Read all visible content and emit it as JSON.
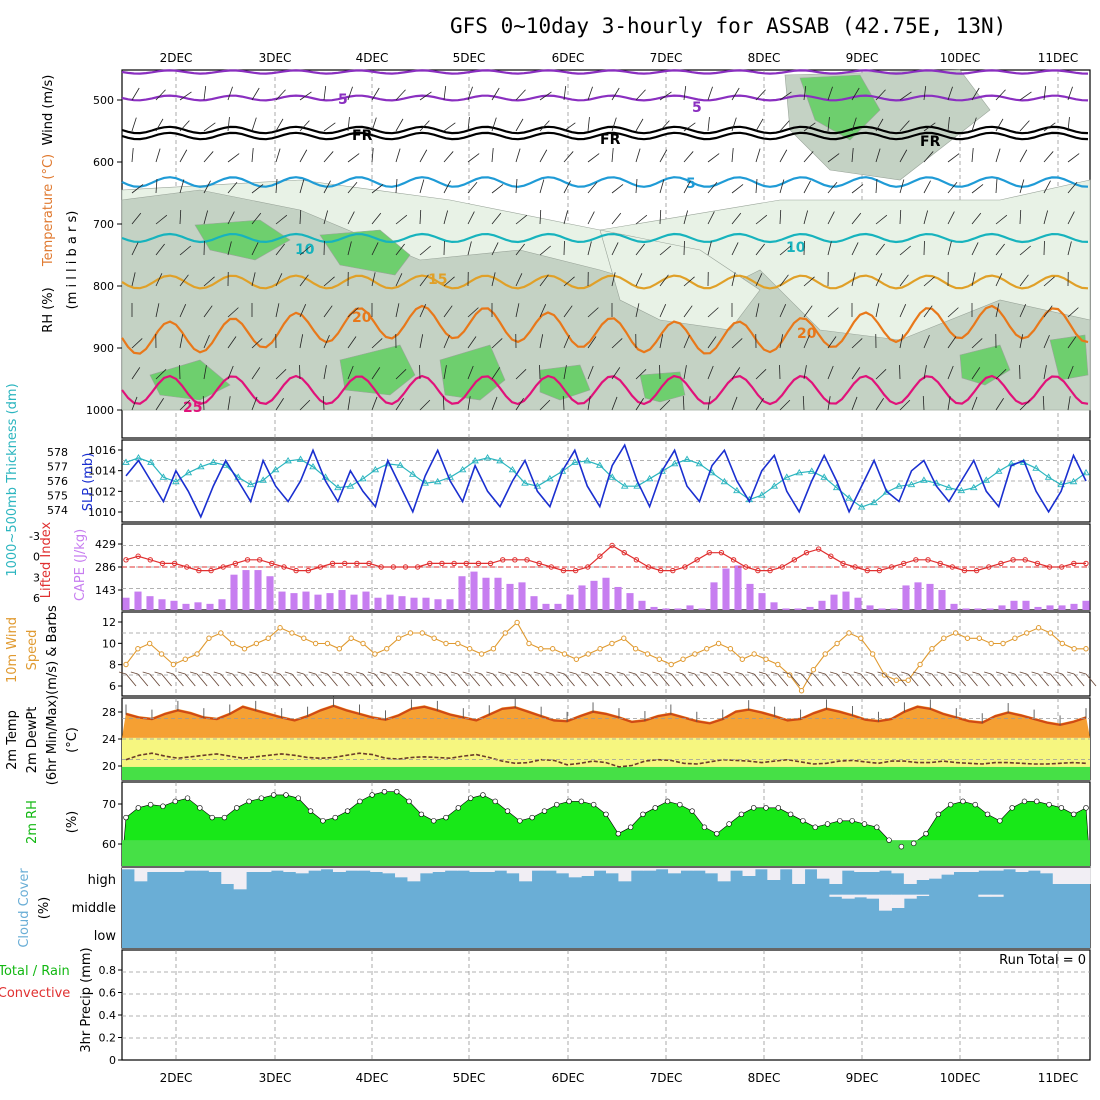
{
  "title": "GFS 0~10day 3-hourly for ASSAB (42.75E, 13N)",
  "dates": [
    "2DEC",
    "3DEC",
    "4DEC",
    "5DEC",
    "6DEC",
    "7DEC",
    "8DEC",
    "9DEC",
    "10DEC",
    "11DEC"
  ],
  "colors": {
    "rh_light": "#e8f2e6",
    "rh_mid": "#c4d2c4",
    "rh_green": "#6ecf6e",
    "rh_bright": "#1fd51f",
    "t5": "#8a2fc0",
    "fr": "#000000",
    "t5b": "#1f9bd6",
    "t10": "#17b3bd",
    "t15": "#e0a028",
    "t20": "#e8781a",
    "t25": "#e0127a",
    "slp": "#1a2fd0",
    "thick": "#2bb5bf",
    "cape": "#c77ef0",
    "li": "#e03030",
    "wind10": "#e09a30",
    "barb": "#6a4a3a",
    "temp_fill": "#f5a033",
    "temp_top": "#d04a14",
    "dew_band": "#f6f680",
    "dew_green": "#46e046",
    "rh2m_dark": "#13b813",
    "rh2m": "#18e818",
    "rh2m_low": "#46e046",
    "cloud": "#6aaed6",
    "cloud_gap": "#f1eef4"
  },
  "panels": {
    "upper": {
      "y_label_rh": "RH (%)",
      "y_label_temp": "Temperature (°C)",
      "y_label_wind": "Wind (m/s)",
      "y_label_mb": "(m i l l i b a r s)",
      "levels": [
        "500",
        "600",
        "700",
        "800",
        "900",
        "1000"
      ],
      "contour_labels": [
        "5",
        "5",
        "FR",
        "FR",
        "FR",
        "5",
        "10",
        "10",
        "15",
        "20",
        "20",
        "25"
      ]
    },
    "slp": {
      "y_label_thick": "1000~500mb Thickness (dm)",
      "y_label_slp": "SLP (mb)",
      "thick_ticks": [
        "578",
        "577",
        "576",
        "575",
        "574"
      ],
      "slp_ticks": [
        "1016",
        "1014",
        "1012",
        "1010"
      ]
    },
    "cape": {
      "y_label_li": "Lifted Index",
      "y_label_cape": "CAPE (J/kg)",
      "li_ticks": [
        "-3",
        "0",
        "3",
        "6"
      ],
      "cape_ticks": [
        "429",
        "286",
        "143"
      ]
    },
    "wind": {
      "y_label_a": "10m Wind",
      "y_label_b": "Speed",
      "y_label_c": "(m/s) & Barbs",
      "ticks": [
        "12",
        "10",
        "8",
        "6"
      ]
    },
    "temp": {
      "y_label_a": "2m Temp",
      "y_label_b": "2m DewPt",
      "y_label_c": "(6hr Min/Max)",
      "y_label_d": "(°C)",
      "ticks": [
        "28",
        "24",
        "20"
      ]
    },
    "rh": {
      "y_label": "2m RH",
      "y_unit": "(%)",
      "ticks": [
        "70",
        "60"
      ]
    },
    "cloud": {
      "y_label": "Cloud Cover",
      "y_unit": "(%)",
      "layers": [
        "high",
        "middle",
        "low"
      ]
    },
    "precip": {
      "y_label_a": "Total / Rain",
      "y_label_b": "Convective",
      "y_label_c": "3hr Precip (mm)",
      "ticks": [
        "0.8",
        "0.6",
        "0.4",
        "0.2",
        "0"
      ],
      "run_total": "Run Total = 0"
    }
  },
  "chart_data": [
    {
      "type": "line",
      "title": "1000~500mb Thickness (dm) / SLP (mb)",
      "series": [
        {
          "name": "SLP (mb)",
          "values": [
            1013.5,
            1015,
            1013,
            1011,
            1014,
            1012,
            1009.5,
            1012.5,
            1015,
            1013,
            1011,
            1015,
            1012.5,
            1011,
            1013,
            1016,
            1013,
            1011,
            1014,
            1012,
            1010.5,
            1015,
            1012.5,
            1010,
            1013.5,
            1016,
            1013,
            1011,
            1014.5,
            1012,
            1010.5,
            1013,
            1015,
            1012,
            1010.5,
            1014,
            1016,
            1012.5,
            1010.5,
            1014.5,
            1016.5,
            1013,
            1010.5,
            1014,
            1016,
            1012.5,
            1011,
            1014.5,
            1016,
            1013,
            1011,
            1014,
            1015.5,
            1012,
            1010,
            1013,
            1015.5,
            1013,
            1010,
            1012.5,
            1015,
            1012,
            1011,
            1014,
            1015,
            1012.5,
            1011,
            1013,
            1015,
            1012,
            1010.5,
            1014.5,
            1015,
            1012,
            1010,
            1012,
            1015.5,
            1013
          ]
        },
        {
          "name": "Thickness (dm)",
          "values": [
            577.5,
            577.8,
            577.5,
            576.5,
            576.2,
            576.8,
            577.2,
            577.5,
            577.3,
            576.5,
            576,
            576.3,
            577,
            577.6,
            577.7,
            577.2,
            576.5,
            575.8,
            575.9,
            576.4,
            577,
            577.4,
            577.3,
            576.7,
            576.1,
            576.2,
            576.5,
            577,
            577.6,
            577.8,
            577.6,
            577,
            576.1,
            575.9,
            576.4,
            576.9,
            577.5,
            577.6,
            577.3,
            576.5,
            575.9,
            575.9,
            576.4,
            576.9,
            577.4,
            577.7,
            577.4,
            576.8,
            576.2,
            575.6,
            575,
            575.3,
            575.9,
            576.5,
            576.8,
            576.9,
            576.5,
            575.8,
            575.1,
            574.5,
            574.8,
            575.5,
            575.9,
            576,
            576.3,
            576.1,
            575.8,
            575.6,
            575.8,
            576.3,
            576.9,
            577.4,
            577.5,
            577.1,
            576.5,
            576,
            576.2,
            576.8
          ]
        }
      ],
      "ylim_slp": [
        1009,
        1017
      ],
      "ylim_thick": [
        573.5,
        579
      ]
    },
    {
      "type": "bar",
      "title": "Lifted Index / CAPE (J/kg)",
      "series": [
        {
          "name": "CAPE (J/kg)",
          "values": [
            80,
            120,
            90,
            70,
            60,
            40,
            50,
            40,
            70,
            230,
            260,
            260,
            220,
            120,
            110,
            120,
            100,
            110,
            130,
            100,
            120,
            80,
            100,
            90,
            80,
            80,
            70,
            70,
            220,
            250,
            210,
            210,
            170,
            180,
            90,
            40,
            40,
            100,
            160,
            190,
            210,
            150,
            110,
            60,
            20,
            10,
            10,
            30,
            10,
            180,
            270,
            290,
            170,
            110,
            50,
            10,
            10,
            20,
            60,
            100,
            120,
            80,
            30,
            10,
            10,
            160,
            180,
            170,
            130,
            40,
            10,
            10,
            10,
            30,
            60,
            60,
            20,
            30,
            30,
            40,
            60
          ]
        },
        {
          "name": "Lifted Index",
          "values": [
            -1,
            -1.5,
            -1,
            -0.5,
            -0.5,
            0,
            0.5,
            0.5,
            0,
            -0.5,
            -1,
            -1,
            -0.5,
            0,
            0.5,
            0.5,
            0,
            -0.5,
            -0.5,
            -0.5,
            -0.5,
            0,
            0,
            0,
            0,
            -0.5,
            -0.5,
            -0.5,
            -0.5,
            -0.5,
            -0.5,
            -1,
            -1,
            -1,
            -0.5,
            0,
            0.5,
            0.5,
            0,
            -1.5,
            -3,
            -2,
            -1,
            0,
            0.5,
            0.5,
            0,
            -1,
            -2,
            -2,
            -1,
            0,
            0.5,
            0.5,
            0,
            -1,
            -2,
            -2.5,
            -1.5,
            -0.5,
            0,
            0.5,
            0.5,
            0,
            -0.5,
            -1,
            -1,
            -0.5,
            0,
            0.5,
            0.5,
            0,
            -0.5,
            -1,
            -1,
            -0.5,
            0,
            0,
            -0.5,
            -0.5
          ]
        }
      ],
      "ylim_cape": [
        0,
        560
      ],
      "ylim_li": [
        6,
        -6
      ]
    },
    {
      "type": "line",
      "title": "10m Wind Speed (m/s) & Barbs",
      "series": [
        {
          "name": "Wind speed (m/s)",
          "values": [
            8,
            9.5,
            10,
            9,
            8,
            8.5,
            9,
            10.5,
            11,
            10,
            9.5,
            10,
            10.5,
            11.5,
            11,
            10.5,
            10,
            10,
            9.5,
            10.5,
            10,
            9,
            9.5,
            10.5,
            11,
            11,
            10.5,
            10,
            10,
            9.5,
            9,
            9.5,
            11,
            12,
            10,
            9.5,
            9.5,
            9,
            8.5,
            9,
            9.5,
            10,
            10.5,
            9.5,
            9,
            8.5,
            8,
            8.5,
            9,
            9.5,
            10,
            9.5,
            8.5,
            9,
            8.5,
            8,
            7,
            5.5,
            7.5,
            9,
            10,
            11,
            10.5,
            9,
            7,
            6.5,
            6.5,
            8,
            9.5,
            10.5,
            11,
            10.5,
            10.5,
            10,
            10,
            10.5,
            11,
            11.5,
            11,
            10,
            9.5,
            9.5
          ]
        }
      ],
      "ylim": [
        5,
        13
      ]
    },
    {
      "type": "area",
      "title": "2m Temp / 2m DewPt (6hr Min/Max) (°C)",
      "series": [
        {
          "name": "2m Temp (°C)",
          "values": [
            27.5,
            27,
            26.8,
            27.5,
            28,
            27.6,
            27,
            26.8,
            27.5,
            28.5,
            28,
            27.5,
            27,
            26.6,
            27.2,
            28,
            28.6,
            28,
            27.5,
            27,
            26.7,
            27.3,
            28.2,
            28.5,
            28,
            27.4,
            27,
            26.6,
            27.4,
            28.2,
            28.4,
            27.8,
            27.2,
            26.6,
            26.5,
            27.2,
            27.8,
            27.5,
            27,
            26.4,
            26.6,
            27.2,
            27.5,
            27,
            26.5,
            26.2,
            26.8,
            27.8,
            28.1,
            27.7,
            27.2,
            26.6,
            26.8,
            27.6,
            28.2,
            27.8,
            27.3,
            26.7,
            26.5,
            26.8,
            27.8,
            28.5,
            28.2,
            27.5,
            27,
            26.5,
            26.3,
            27.2,
            27.7,
            27.3,
            26.8,
            26.3,
            26,
            26.4,
            27
          ]
        },
        {
          "name": "2m DewPt (°C)",
          "values": [
            21,
            21.6,
            21.9,
            21.5,
            21.2,
            21.4,
            21.6,
            21.8,
            21.5,
            21.2,
            21.4,
            21.6,
            21.8,
            21.6,
            21.3,
            21.2,
            21.3,
            21.6,
            21.9,
            21.7,
            21.2,
            21.1,
            21.3,
            21.4,
            21.3,
            21.2,
            21.5,
            21.7,
            21.3,
            20.8,
            20.5,
            20.6,
            21,
            20.9,
            20.3,
            20.5,
            20.8,
            20.6,
            20,
            20.2,
            20.8,
            21,
            20.9,
            20.5,
            20.4,
            20.7,
            21,
            20.9,
            20.8,
            20.6,
            20.8,
            21,
            20.7,
            20.4,
            20.5,
            20.8,
            20.9,
            20.7,
            20.5,
            20.8,
            20.8,
            20.6,
            20.6,
            20.8,
            20.6,
            20.5,
            20.4,
            20.6,
            20.6,
            20.5,
            20.4,
            20.4,
            20.5,
            20.6,
            20.5
          ]
        }
      ],
      "ylim": [
        18.2,
        29.5
      ]
    },
    {
      "type": "area",
      "title": "2m RH (%)",
      "series": [
        {
          "name": "2m RH (%)",
          "values": [
            67,
            70,
            71,
            70.5,
            72,
            73,
            70,
            67,
            67,
            70,
            72,
            73,
            74,
            74,
            73,
            69,
            66,
            67,
            69,
            72,
            74,
            75,
            75,
            72,
            68,
            66,
            67,
            70,
            73,
            74,
            72,
            69,
            66,
            67,
            69,
            71,
            72,
            72,
            71,
            68,
            62,
            64,
            68,
            70,
            72,
            71,
            69,
            64,
            62,
            65,
            68,
            70,
            70,
            70,
            68,
            66,
            64,
            65,
            66,
            66,
            65,
            64,
            60,
            58,
            59,
            62,
            68,
            71,
            72,
            71,
            68,
            66,
            70,
            72,
            72,
            71,
            70,
            68,
            70
          ]
        }
      ],
      "ylim": [
        52,
        78
      ]
    },
    {
      "type": "bar",
      "title": "Cloud Cover (%)",
      "layers": [
        "high",
        "middle",
        "low"
      ],
      "series": [
        {
          "name": "high",
          "values": [
            95,
            50,
            85,
            85,
            85,
            90,
            90,
            85,
            40,
            20,
            85,
            85,
            90,
            85,
            80,
            90,
            95,
            85,
            90,
            90,
            85,
            80,
            65,
            50,
            80,
            85,
            90,
            90,
            85,
            85,
            90,
            80,
            50,
            90,
            90,
            80,
            65,
            70,
            90,
            80,
            50,
            90,
            90,
            95,
            80,
            90,
            90,
            80,
            50,
            90,
            70,
            95,
            55,
            95,
            40,
            95,
            60,
            40,
            90,
            85,
            85,
            90,
            80,
            40,
            55,
            60,
            75,
            85,
            85,
            90,
            90,
            95,
            85,
            90,
            80,
            40,
            40,
            40
          ]
        },
        {
          "name": "middle",
          "values": [
            100,
            100,
            100,
            100,
            100,
            100,
            100,
            100,
            100,
            100,
            100,
            100,
            100,
            100,
            100,
            100,
            100,
            100,
            100,
            100,
            100,
            100,
            100,
            100,
            100,
            100,
            100,
            100,
            100,
            100,
            100,
            100,
            100,
            100,
            100,
            100,
            100,
            100,
            100,
            100,
            100,
            100,
            100,
            100,
            100,
            100,
            100,
            100,
            100,
            100,
            100,
            100,
            100,
            100,
            100,
            100,
            100,
            92,
            85,
            90,
            85,
            40,
            50,
            85,
            95,
            100,
            100,
            100,
            100,
            92,
            92,
            100,
            100,
            100,
            100,
            100,
            100,
            100
          ]
        },
        {
          "name": "low",
          "values": [
            100,
            100,
            100,
            100,
            100,
            100,
            100,
            100,
            100,
            100,
            100,
            100,
            100,
            100,
            100,
            100,
            100,
            100,
            100,
            100,
            100,
            100,
            100,
            100,
            100,
            100,
            100,
            100,
            100,
            100,
            100,
            100,
            100,
            100,
            100,
            100,
            100,
            100,
            100,
            100,
            100,
            100,
            100,
            100,
            100,
            100,
            100,
            100,
            100,
            100,
            100,
            100,
            100,
            100,
            100,
            100,
            100,
            100,
            100,
            100,
            100,
            100,
            100,
            100,
            100,
            100,
            100,
            100,
            100,
            100,
            100,
            100,
            100,
            100,
            100,
            100,
            100,
            100
          ]
        }
      ],
      "ylim": [
        0,
        100
      ]
    },
    {
      "type": "bar",
      "title": "3hr Precip (mm)",
      "series": [
        {
          "name": "Total / Rain",
          "values": []
        },
        {
          "name": "Convective",
          "values": []
        }
      ],
      "ylim": [
        0,
        0.9
      ],
      "run_total": 0
    }
  ]
}
